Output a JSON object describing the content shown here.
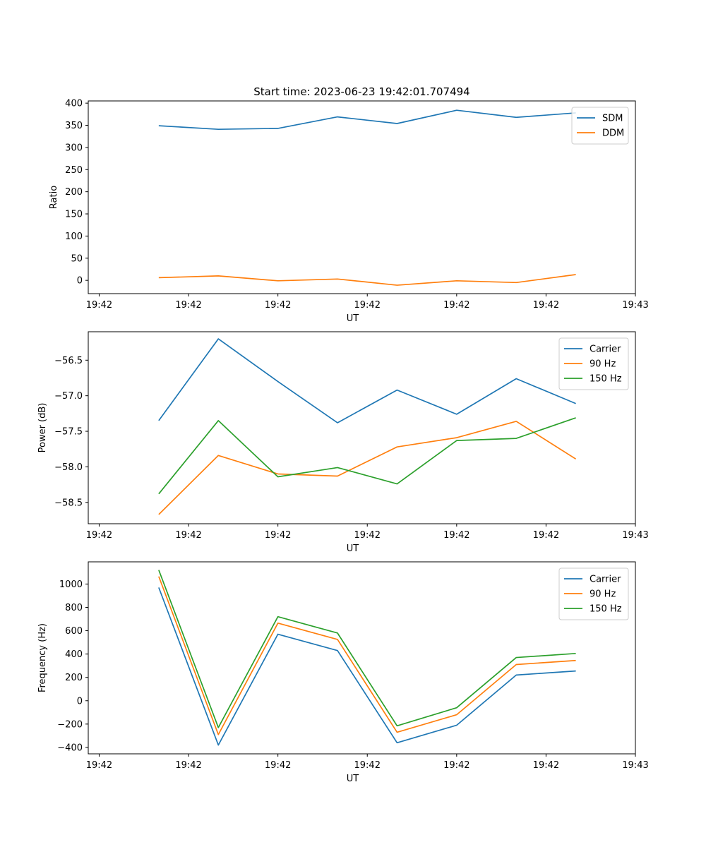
{
  "chart_data": [
    {
      "type": "line",
      "title": "Start time: 2023-06-23 19:42:01.707494",
      "xlabel": "UT",
      "ylabel": "Ratio",
      "x": [
        0.6,
        1.2,
        1.8,
        2.4,
        3.0,
        3.6,
        4.2,
        4.8
      ],
      "x_tick_values": [
        0.0,
        0.9,
        1.8,
        2.7,
        3.6,
        4.5,
        5.4
      ],
      "x_tick_labels": [
        "19:42",
        "19:42",
        "19:42",
        "19:42",
        "19:42",
        "19:42",
        "19:43"
      ],
      "xlim": [
        -0.11,
        5.4
      ],
      "ylim": [
        -30,
        405
      ],
      "y_ticks": [
        0,
        50,
        100,
        150,
        200,
        250,
        300,
        350,
        400
      ],
      "y_tick_labels": [
        "0",
        "50",
        "100",
        "150",
        "200",
        "250",
        "300",
        "350",
        "400"
      ],
      "grid": false,
      "legend_position": "top-right",
      "series": [
        {
          "name": "SDM",
          "color": "#1f77b4",
          "values": [
            349,
            341,
            343,
            369,
            354,
            384,
            368,
            378
          ]
        },
        {
          "name": "DDM",
          "color": "#ff7f0e",
          "values": [
            6,
            10,
            -1,
            3,
            -11,
            -1,
            -5,
            13
          ]
        }
      ]
    },
    {
      "type": "line",
      "title": "",
      "xlabel": "UT",
      "ylabel": "Power (dB)",
      "x": [
        0.6,
        1.2,
        1.8,
        2.4,
        3.0,
        3.6,
        4.2,
        4.8
      ],
      "x_tick_values": [
        0.0,
        0.9,
        1.8,
        2.7,
        3.6,
        4.5,
        5.4
      ],
      "x_tick_labels": [
        "19:42",
        "19:42",
        "19:42",
        "19:42",
        "19:42",
        "19:42",
        "19:43"
      ],
      "xlim": [
        -0.11,
        5.4
      ],
      "ylim": [
        -58.8,
        -56.1
      ],
      "y_ticks": [
        -58.5,
        -58.0,
        -57.5,
        -57.0,
        -56.5
      ],
      "y_tick_labels": [
        "−58.5",
        "−58.0",
        "−57.5",
        "−57.0",
        "−56.5"
      ],
      "grid": false,
      "legend_position": "top-right",
      "series": [
        {
          "name": "Carrier",
          "color": "#1f77b4",
          "values": [
            -57.35,
            -56.2,
            -56.8,
            -57.38,
            -56.92,
            -57.26,
            -56.76,
            -57.11
          ]
        },
        {
          "name": "90 Hz",
          "color": "#ff7f0e",
          "values": [
            -58.67,
            -57.84,
            -58.1,
            -58.13,
            -57.72,
            -57.59,
            -57.36,
            -57.89
          ]
        },
        {
          "name": "150 Hz",
          "color": "#2ca02c",
          "values": [
            -58.38,
            -57.35,
            -58.14,
            -58.01,
            -58.24,
            -57.63,
            -57.6,
            -57.31
          ]
        }
      ]
    },
    {
      "type": "line",
      "title": "",
      "xlabel": "UT",
      "ylabel": "Frequency (Hz)",
      "x": [
        0.6,
        1.2,
        1.8,
        2.4,
        3.0,
        3.6,
        4.2,
        4.8
      ],
      "x_tick_values": [
        0.0,
        0.9,
        1.8,
        2.7,
        3.6,
        4.5,
        5.4
      ],
      "x_tick_labels": [
        "19:42",
        "19:42",
        "19:42",
        "19:42",
        "19:42",
        "19:42",
        "19:43"
      ],
      "xlim": [
        -0.11,
        5.4
      ],
      "ylim": [
        -455,
        1190
      ],
      "y_ticks": [
        -400,
        -200,
        0,
        200,
        400,
        600,
        800,
        1000
      ],
      "y_tick_labels": [
        "−400",
        "−200",
        "0",
        "200",
        "400",
        "600",
        "800",
        "1000"
      ],
      "grid": false,
      "legend_position": "top-right",
      "series": [
        {
          "name": "Carrier",
          "color": "#1f77b4",
          "values": [
            970,
            -380,
            570,
            430,
            -360,
            -210,
            220,
            255
          ]
        },
        {
          "name": "90 Hz",
          "color": "#ff7f0e",
          "values": [
            1065,
            -290,
            665,
            525,
            -270,
            -120,
            310,
            345
          ]
        },
        {
          "name": "150 Hz",
          "color": "#2ca02c",
          "values": [
            1120,
            -230,
            720,
            580,
            -215,
            -60,
            370,
            405
          ]
        }
      ]
    }
  ]
}
